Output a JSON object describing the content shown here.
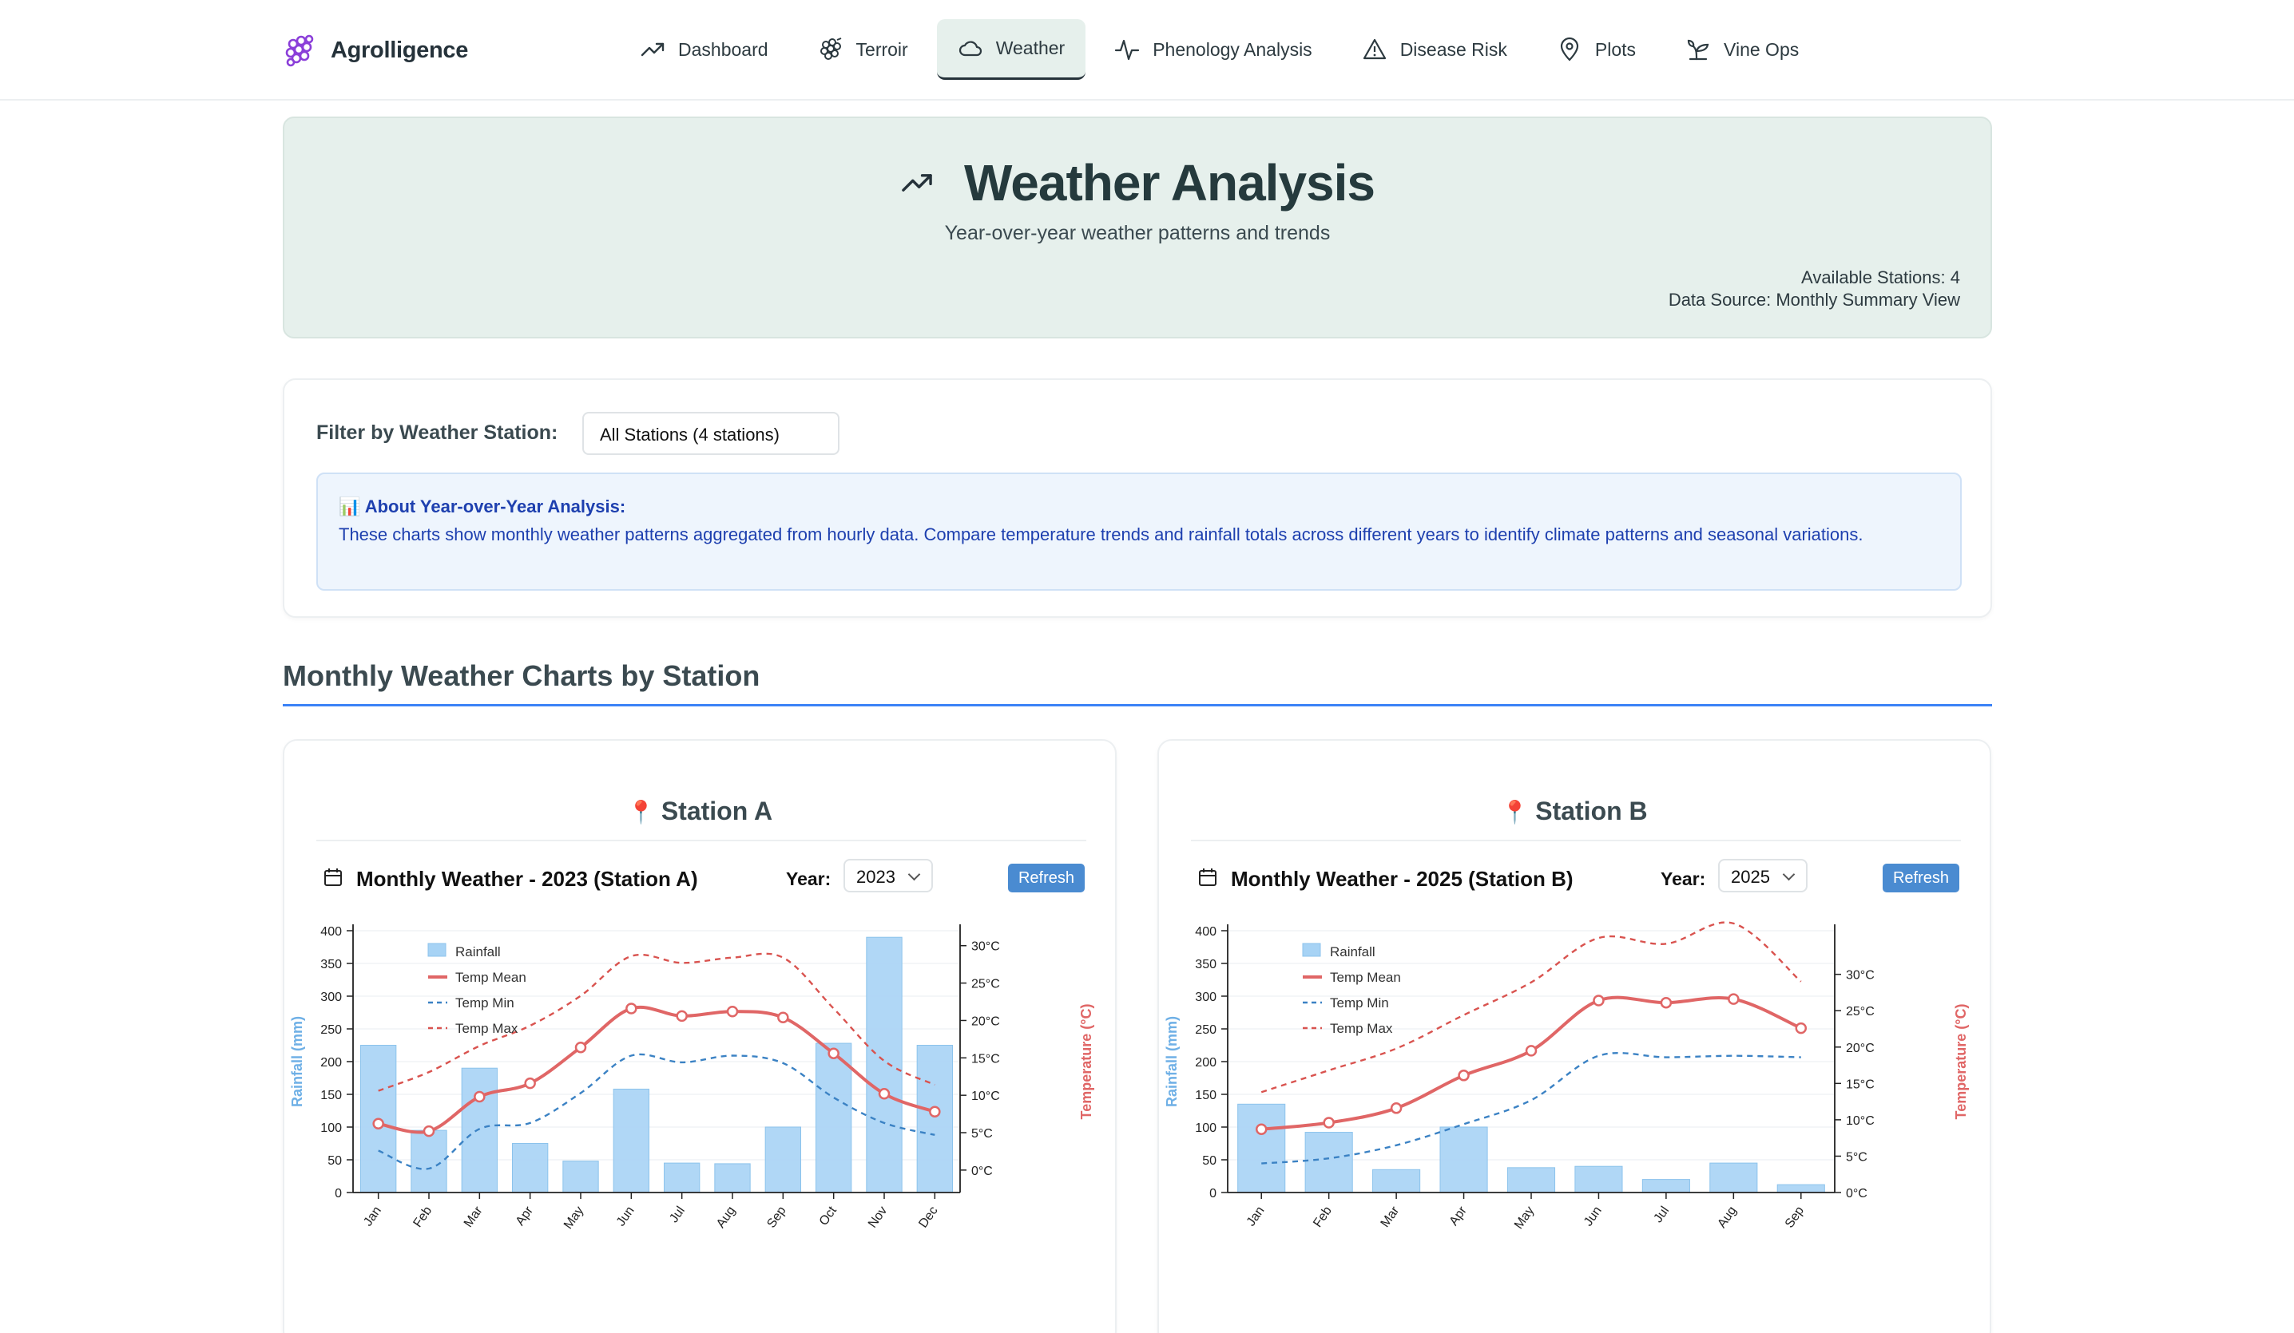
{
  "brand": {
    "name": "Agrolligence"
  },
  "nav": {
    "items": [
      {
        "label": "Dashboard",
        "icon": "trending-up-icon"
      },
      {
        "label": "Terroir",
        "icon": "grapes-icon"
      },
      {
        "label": "Weather",
        "icon": "cloud-icon",
        "active": true
      },
      {
        "label": "Phenology Analysis",
        "icon": "activity-icon"
      },
      {
        "label": "Disease Risk",
        "icon": "warning-triangle-icon"
      },
      {
        "label": "Plots",
        "icon": "map-pin-icon"
      },
      {
        "label": "Vine Ops",
        "icon": "sprout-icon"
      }
    ]
  },
  "hero": {
    "title": "Weather Analysis",
    "subtitle": "Year-over-year weather patterns and trends",
    "stations": "Available Stations: 4",
    "source": "Data Source: Monthly Summary View"
  },
  "filter": {
    "label": "Filter by Weather Station:",
    "selected": "All Stations (4 stations)",
    "info_title": "📊 About Year-over-Year Analysis:",
    "info_text": "These charts show monthly weather patterns aggregated from hourly data. Compare temperature trends and rainfall totals across different years to identify climate patterns and seasonal variations."
  },
  "section": {
    "title": "Monthly Weather Charts by Station"
  },
  "year_label": "Year:",
  "refresh_label": "Refresh",
  "colors": {
    "rain": "#a7d3f5",
    "temp_mean": "#e06666",
    "temp_min": "#3b82c4",
    "temp_max": "#d9534f",
    "accent": "#3b82f6"
  },
  "chart_data": [
    {
      "type": "bar",
      "station": "Station A",
      "title": "Monthly Weather - 2023 (Station A)",
      "year": "2023",
      "categories": [
        "Jan",
        "Feb",
        "Mar",
        "Apr",
        "May",
        "Jun",
        "Jul",
        "Aug",
        "Sep",
        "Oct",
        "Nov",
        "Dec"
      ],
      "ylabel": "Rainfall (mm)",
      "y2label": "Temperature (°C)",
      "ylim": [
        0,
        400
      ],
      "y2lim": [
        -3,
        32
      ],
      "yticks": [
        "0",
        "50",
        "100",
        "150",
        "200",
        "250",
        "300",
        "350",
        "400"
      ],
      "y2ticks": [
        "0°C",
        "5°C",
        "10°C",
        "15°C",
        "20°C",
        "25°C",
        "30°C"
      ],
      "legend": [
        "Rainfall",
        "Temp Mean",
        "Temp Min",
        "Temp Max"
      ],
      "legend_position": "top-left",
      "series": [
        {
          "name": "Rainfall",
          "values": [
            225,
            95,
            190,
            75,
            48,
            158,
            45,
            44,
            100,
            228,
            390,
            225
          ]
        },
        {
          "name": "Temp Mean",
          "values": [
            6.2,
            5.2,
            9.8,
            11.6,
            16.4,
            21.6,
            20.6,
            21.2,
            20.4,
            15.6,
            10.2,
            7.8
          ]
        },
        {
          "name": "Temp Min",
          "values": [
            2.6,
            0.2,
            5.5,
            6.3,
            10.3,
            15.3,
            14.4,
            15.3,
            14.3,
            9.7,
            6.3,
            4.7
          ]
        },
        {
          "name": "Temp Max",
          "values": [
            10.6,
            13.1,
            16.6,
            19.3,
            23.3,
            28.6,
            27.7,
            28.4,
            28.4,
            21.6,
            14.6,
            11.4
          ]
        }
      ]
    },
    {
      "type": "bar",
      "station": "Station B",
      "title": "Monthly Weather - 2025 (Station B)",
      "year": "2025",
      "categories": [
        "Jan",
        "Feb",
        "Mar",
        "Apr",
        "May",
        "Jun",
        "Jul",
        "Aug",
        "Sep"
      ],
      "ylabel": "Rainfall (mm)",
      "y2label": "Temperature (°C)",
      "ylim": [
        0,
        400
      ],
      "y2lim": [
        0,
        36
      ],
      "yticks": [
        "0",
        "50",
        "100",
        "150",
        "200",
        "250",
        "300",
        "350",
        "400"
      ],
      "y2ticks": [
        "0°C",
        "5°C",
        "10°C",
        "15°C",
        "20°C",
        "25°C",
        "30°C"
      ],
      "legend": [
        "Rainfall",
        "Temp Mean",
        "Temp Min",
        "Temp Max"
      ],
      "legend_position": "top-left",
      "series": [
        {
          "name": "Rainfall",
          "values": [
            135,
            92,
            35,
            100,
            38,
            40,
            20,
            45,
            12
          ]
        },
        {
          "name": "Temp Mean",
          "values": [
            8.7,
            9.6,
            11.6,
            16.1,
            19.5,
            26.4,
            26.1,
            26.6,
            22.6
          ]
        },
        {
          "name": "Temp Min",
          "values": [
            4.0,
            4.7,
            6.5,
            9.4,
            12.7,
            18.8,
            18.6,
            18.8,
            18.6
          ]
        },
        {
          "name": "Temp Max",
          "values": [
            13.8,
            16.8,
            19.8,
            24.4,
            28.9,
            35.0,
            34.2,
            37.0,
            29.0
          ]
        }
      ]
    }
  ]
}
